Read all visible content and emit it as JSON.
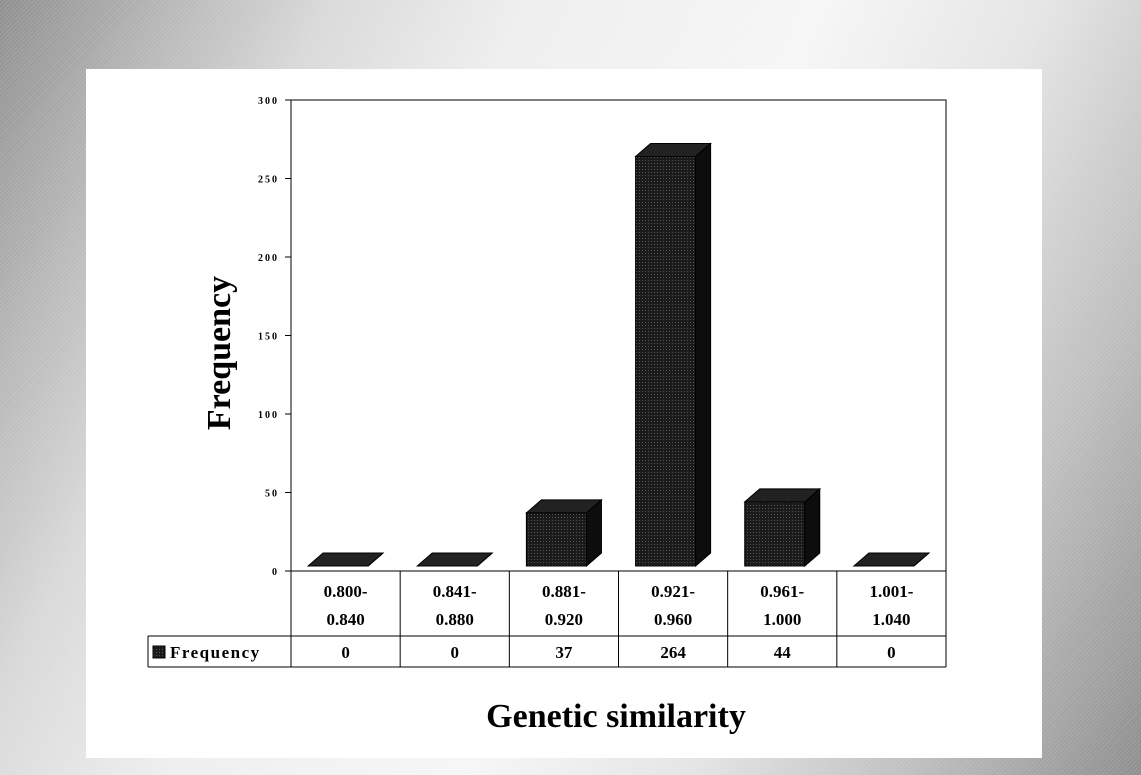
{
  "chart_data": {
    "type": "bar",
    "title": "",
    "xlabel": "Genetic similarity",
    "ylabel": "Frequency",
    "ylim": [
      0,
      300
    ],
    "yticks": [
      0,
      50,
      100,
      150,
      200,
      250,
      300
    ],
    "ytick_labels": [
      "0",
      "50",
      "100",
      "150",
      "200",
      "250",
      "300"
    ],
    "categories": [
      [
        "0.800-",
        "0.840"
      ],
      [
        "0.841-",
        "0.880"
      ],
      [
        "0.881-",
        "0.920"
      ],
      [
        "0.921-",
        "0.960"
      ],
      [
        "0.961-",
        "1.000"
      ],
      [
        "1.001-",
        "1.040"
      ]
    ],
    "series": [
      {
        "name": "Frequency",
        "values": [
          0,
          0,
          37,
          264,
          44,
          0
        ]
      }
    ],
    "style": "3d-column",
    "data_table": true,
    "bar_color": "#1a1a1a"
  }
}
